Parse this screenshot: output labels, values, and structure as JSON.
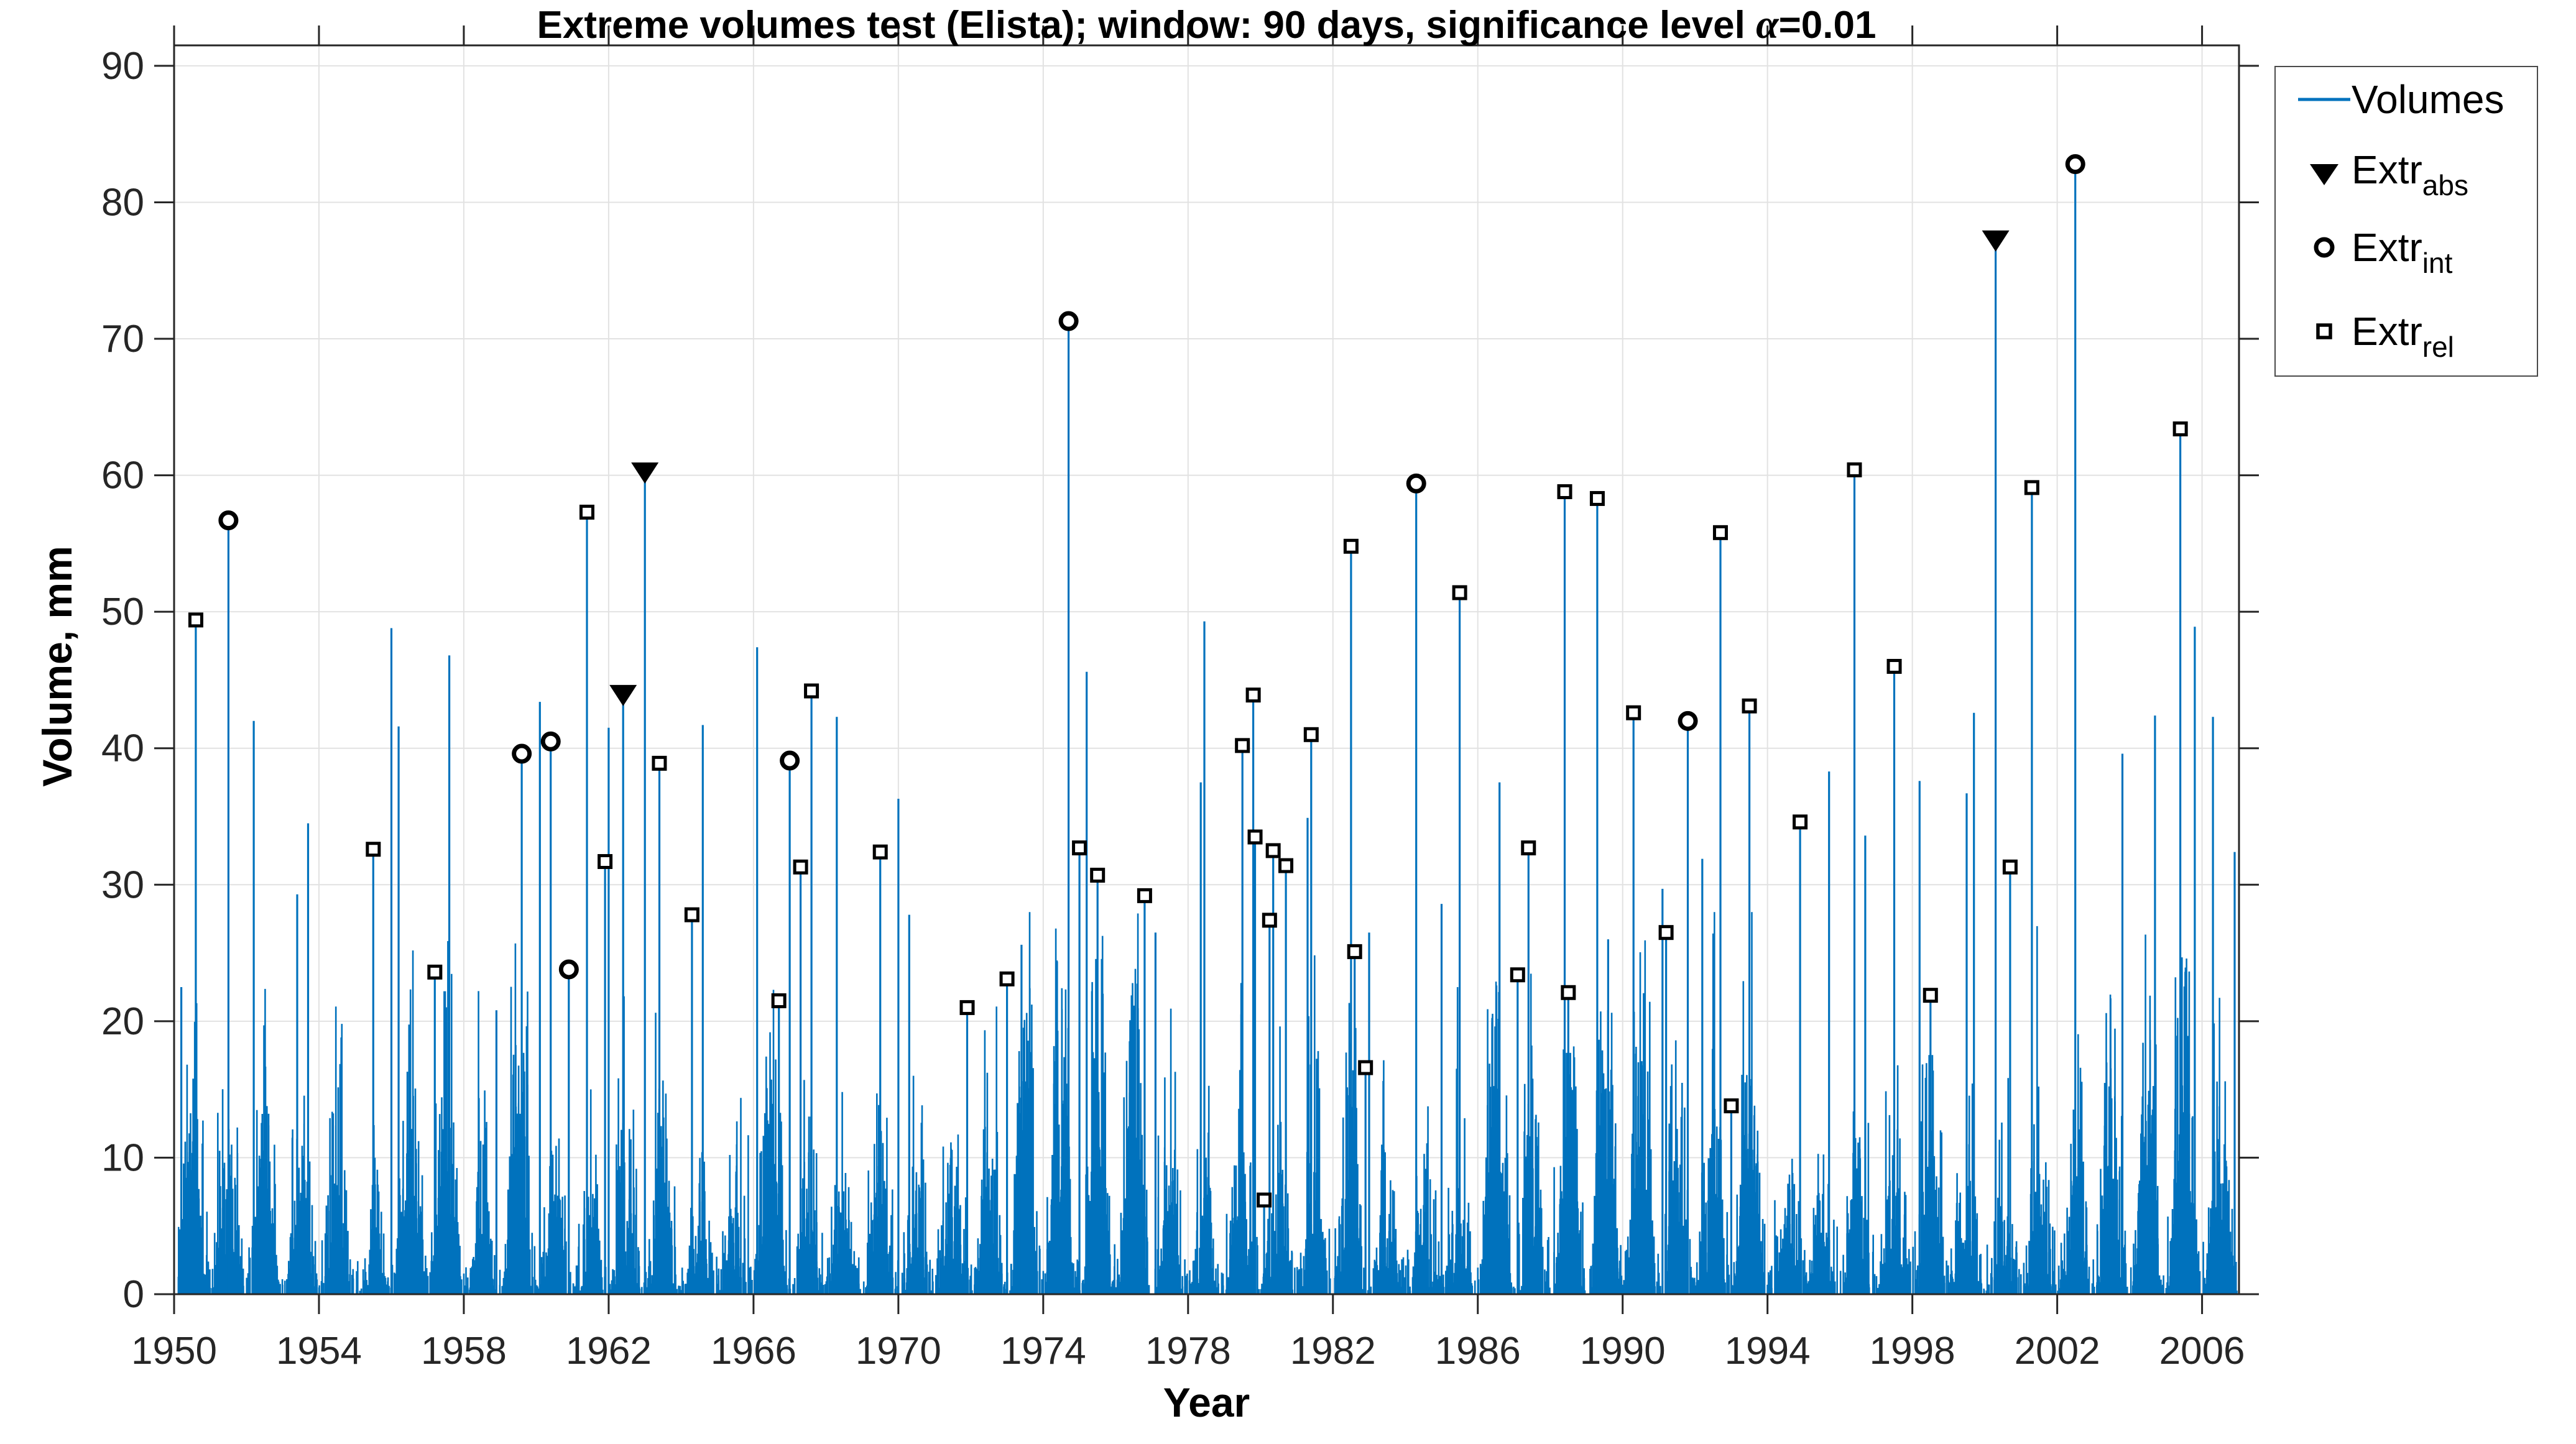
{
  "figure_title": {
    "pre": "Extreme volumes test (Elista); window: 90 days, significance level ",
    "alpha": "α",
    "post": "=0.01"
  },
  "axes": {
    "xlabel": "Year",
    "ylabel": "Volume, mm",
    "xlim": [
      1950,
      2007.02
    ],
    "ylim": [
      0,
      91.5
    ],
    "xticks": [
      1950,
      1954,
      1958,
      1962,
      1966,
      1970,
      1974,
      1978,
      1982,
      1986,
      1990,
      1994,
      1998,
      2002,
      2006
    ],
    "yticks": [
      0,
      10,
      20,
      30,
      40,
      50,
      60,
      70,
      80,
      90
    ],
    "grid": true
  },
  "colors": {
    "volumes": "#0072BD",
    "marker": "#000000",
    "grid": "#E2E2E2",
    "axis": "#262626",
    "tick_label": "#262626"
  },
  "legend": {
    "items": [
      {
        "label": "Volumes",
        "sub": "",
        "marker": "line"
      },
      {
        "label": "Extr",
        "sub": "abs",
        "marker": "triangle-down-filled"
      },
      {
        "label": "Extr",
        "sub": "int",
        "marker": "circle-open"
      },
      {
        "label": "Extr",
        "sub": "rel",
        "marker": "square-open"
      }
    ]
  },
  "chart_data": {
    "type": "stem-timeseries",
    "title": "Extreme volumes test (Elista); window: 90 days, significance level α=0.01",
    "xlabel": "Year",
    "ylabel": "Volume, mm",
    "series_name": "Volumes",
    "window_days": 90,
    "significance_level": 0.01,
    "station": "Elista",
    "x_range_years": [
      1950,
      2007
    ],
    "y_range_mm": [
      0,
      90
    ],
    "extremes_abs": [
      [
        1962.4,
        44.0
      ],
      [
        1963.0,
        60.3
      ],
      [
        2000.3,
        77.3
      ]
    ],
    "extremes_int": [
      [
        1951.5,
        56.7
      ],
      [
        1959.6,
        39.6
      ],
      [
        1960.4,
        40.5
      ],
      [
        1960.9,
        23.8
      ],
      [
        1967.0,
        39.1
      ],
      [
        1974.7,
        71.3
      ],
      [
        1984.3,
        59.4
      ],
      [
        1991.8,
        42.0
      ],
      [
        2002.5,
        82.8
      ]
    ],
    "extremes_rel": [
      [
        1950.6,
        49.4
      ],
      [
        1955.5,
        32.6
      ],
      [
        1957.2,
        23.6
      ],
      [
        1961.4,
        57.3
      ],
      [
        1961.9,
        31.7
      ],
      [
        1963.4,
        38.9
      ],
      [
        1964.3,
        27.8
      ],
      [
        1966.7,
        21.5
      ],
      [
        1967.3,
        31.3
      ],
      [
        1967.6,
        44.2
      ],
      [
        1969.5,
        32.4
      ],
      [
        1971.9,
        21.0
      ],
      [
        1973.0,
        23.1
      ],
      [
        1975.0,
        32.7
      ],
      [
        1975.5,
        30.7
      ],
      [
        1976.8,
        29.2
      ],
      [
        1979.5,
        40.2
      ],
      [
        1979.8,
        43.9
      ],
      [
        1979.85,
        33.5
      ],
      [
        1980.1,
        6.9
      ],
      [
        1980.25,
        27.4
      ],
      [
        1980.35,
        32.5
      ],
      [
        1980.7,
        31.4
      ],
      [
        1981.4,
        41.0
      ],
      [
        1982.5,
        54.8
      ],
      [
        1982.6,
        25.1
      ],
      [
        1982.9,
        16.6
      ],
      [
        1985.5,
        51.4
      ],
      [
        1987.1,
        23.4
      ],
      [
        1987.4,
        32.7
      ],
      [
        1988.4,
        58.8
      ],
      [
        1988.5,
        22.1
      ],
      [
        1989.3,
        58.3
      ],
      [
        1990.3,
        42.6
      ],
      [
        1991.2,
        26.5
      ],
      [
        1992.7,
        55.8
      ],
      [
        1993.0,
        13.8
      ],
      [
        1993.5,
        43.1
      ],
      [
        1994.9,
        34.6
      ],
      [
        1996.4,
        60.4
      ],
      [
        1997.5,
        46.0
      ],
      [
        1998.5,
        21.9
      ],
      [
        2000.7,
        31.3
      ],
      [
        2001.3,
        59.1
      ],
      [
        2005.4,
        63.4
      ]
    ],
    "unmarked_peaks": [
      [
        1950.2,
        22.5
      ],
      [
        1952.2,
        42.0
      ],
      [
        1953.4,
        29.3
      ],
      [
        1953.7,
        34.5
      ],
      [
        1956.0,
        48.8
      ],
      [
        1956.2,
        41.6
      ],
      [
        1957.6,
        46.8
      ],
      [
        1958.9,
        20.8
      ],
      [
        1960.1,
        43.4
      ],
      [
        1962.0,
        41.5
      ],
      [
        1964.6,
        41.7
      ],
      [
        1966.1,
        47.4
      ],
      [
        1968.3,
        42.3
      ],
      [
        1970.0,
        36.3
      ],
      [
        1970.3,
        27.8
      ],
      [
        1973.4,
        25.6
      ],
      [
        1975.2,
        45.6
      ],
      [
        1977.1,
        26.5
      ],
      [
        1978.35,
        37.5
      ],
      [
        1978.45,
        49.3
      ],
      [
        1981.3,
        34.9
      ],
      [
        1983.0,
        26.5
      ],
      [
        1985.0,
        28.6
      ],
      [
        1986.6,
        37.5
      ],
      [
        1989.6,
        26.0
      ],
      [
        1991.1,
        29.7
      ],
      [
        1992.2,
        31.9
      ],
      [
        1995.7,
        38.3
      ],
      [
        1996.7,
        33.6
      ],
      [
        1998.2,
        37.6
      ],
      [
        1999.5,
        36.7
      ],
      [
        1999.7,
        42.6
      ],
      [
        2003.8,
        39.6
      ],
      [
        2004.7,
        42.4
      ],
      [
        2005.8,
        48.9
      ],
      [
        2006.3,
        42.3
      ],
      [
        2006.9,
        32.4
      ]
    ],
    "background": {
      "description": "daily volume series 1950-2007, dense small stems 0-28 mm with seasonal clustering",
      "seed": 20,
      "daily_step_years": 0.0027379,
      "max_background_mm": 28
    }
  }
}
